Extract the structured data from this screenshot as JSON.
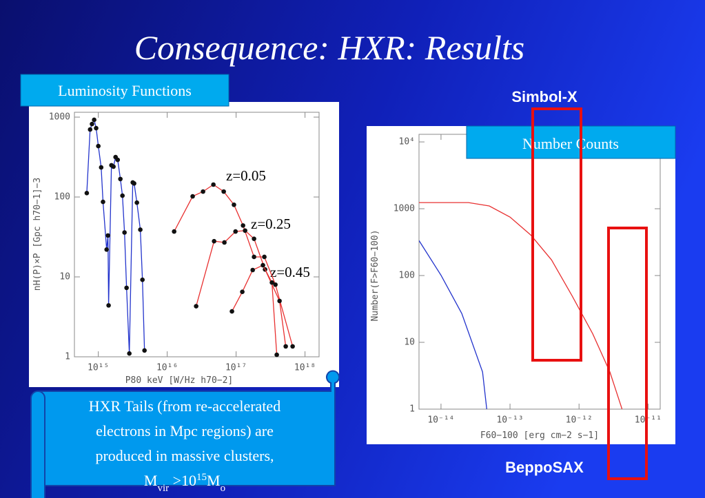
{
  "slide": {
    "title": "Consequence: HXR: Results",
    "box1": "Luminosity Functions",
    "box2": "Number Counts",
    "label1": "Simbol-X",
    "label2": "BeppoSAX",
    "scroll_lines": [
      "HXR Tails (from re-accelerated",
      "electrons in Mpc regions) are",
      "produced in massive clusters,"
    ],
    "scroll_last": [
      "M",
      "vir",
      " >10",
      "15",
      "M",
      "o"
    ]
  },
  "chart_data": [
    {
      "type": "line",
      "markers": true,
      "xscale": "log",
      "yscale": "log",
      "xlabel": "P80 keV [W/Hz h70−2]",
      "ylabel": "nH(P)×P [Gpc h70−1]−3",
      "xlim": [
        450000000000000.0,
        1.6e+18
      ],
      "ylim": [
        1,
        1150
      ],
      "xticks": [
        {
          "value": 1000000000000000.0,
          "label": "10¹⁵"
        },
        {
          "value": 1e+16,
          "label": "10¹⁶"
        },
        {
          "value": 1e+17,
          "label": "10¹⁷"
        },
        {
          "value": 1e+18,
          "label": "10¹⁸"
        }
      ],
      "yticks": [
        1,
        10,
        100,
        1000
      ],
      "annotations": [
        "z=0.05",
        "z=0.25",
        "z=0.45"
      ],
      "series": [
        {
          "color": "#2233cc",
          "x": [
            680000000000000.0,
            760000000000000.0,
            810000000000000.0,
            870000000000000.0,
            930000000000000.0,
            1000000000000000.0,
            1100000000000000.0,
            1170000000000000.0,
            1320000000000000.0,
            1380000000000000.0,
            1410000000000000.0,
            1550000000000000.0,
            1660000000000000.0,
            1780000000000000.0,
            1910000000000000.0,
            2090000000000000.0,
            2240000000000000.0,
            2400000000000000.0,
            2570000000000000.0,
            2820000000000000.0,
            3160000000000000.0,
            3310000000000000.0,
            3630000000000000.0,
            4070000000000000.0,
            4370000000000000.0,
            4680000000000000.0
          ],
          "values": [
            112,
            700,
            820,
            925,
            728,
            434,
            235,
            87,
            22,
            33,
            4.4,
            250,
            240,
            316,
            292,
            168,
            104,
            36,
            7.3,
            1.1,
            152,
            148,
            85,
            39,
            9.2,
            1.2
          ]
        },
        {
          "color": "#e83030",
          "x": [
            1.26e+16,
            2.34e+16,
            3.31e+16,
            4.68e+16,
            6.61e+16,
            9.3e+16,
            1.26e+17,
            1.82e+17,
            2.57e+17,
            3.72e+17,
            6.61e+17
          ],
          "values": [
            37,
            102,
            117,
            143,
            117,
            80,
            44,
            17.8,
            17.8,
            8.0,
            1.35
          ]
        },
        {
          "color": "#e83030",
          "x": [
            2.63e+16,
            4.79e+16,
            6.76e+16,
            9.8e+16,
            1.35e+17,
            1.82e+17,
            2.63e+17,
            4.27e+17,
            5.25e+17
          ],
          "values": [
            4.3,
            28,
            27,
            37,
            38,
            30,
            12.4,
            5.0,
            1.35
          ]
        },
        {
          "color": "#e83030",
          "x": [
            8.7e+16,
            1.23e+17,
            1.74e+17,
            2.45e+17,
            3.31e+17,
            3.89e+17
          ],
          "values": [
            3.7,
            6.5,
            12.2,
            14.0,
            8.5,
            1.06
          ]
        }
      ]
    },
    {
      "type": "line",
      "markers": false,
      "xscale": "log",
      "yscale": "log",
      "xlabel": "F60−100 [erg cm−2 s−1]",
      "ylabel": "Number(F>F60−100)",
      "xlim": [
        4.8e-15,
        1.5e-11
      ],
      "ylim": [
        1,
        13000
      ],
      "xticks": [
        {
          "value": 1e-14,
          "label": "10⁻¹⁴"
        },
        {
          "value": 1e-13,
          "label": "10⁻¹³"
        },
        {
          "value": 1e-12,
          "label": "10⁻¹²"
        },
        {
          "value": 1e-11,
          "label": "10⁻¹¹"
        }
      ],
      "yticks": [
        1,
        10,
        100,
        1000,
        {
          "value": 10000,
          "label": "10⁴"
        }
      ],
      "series": [
        {
          "color": "#e83030",
          "x": [
            4.8e-15,
            2.5e-14,
            5e-14,
            1e-13,
            2e-13,
            4e-13,
            7.9e-13,
            1.58e-12,
            2.8e-12,
            4.2e-12
          ],
          "values": [
            1236,
            1236,
            1100,
            750,
            404,
            171,
            50,
            13.4,
            3.6,
            1
          ]
        },
        {
          "color": "#2233cc",
          "x": [
            4.8e-15,
            1e-14,
            2e-14,
            4e-14,
            4.6e-14
          ],
          "values": [
            334,
            101,
            27,
            3.6,
            1
          ]
        }
      ]
    }
  ]
}
